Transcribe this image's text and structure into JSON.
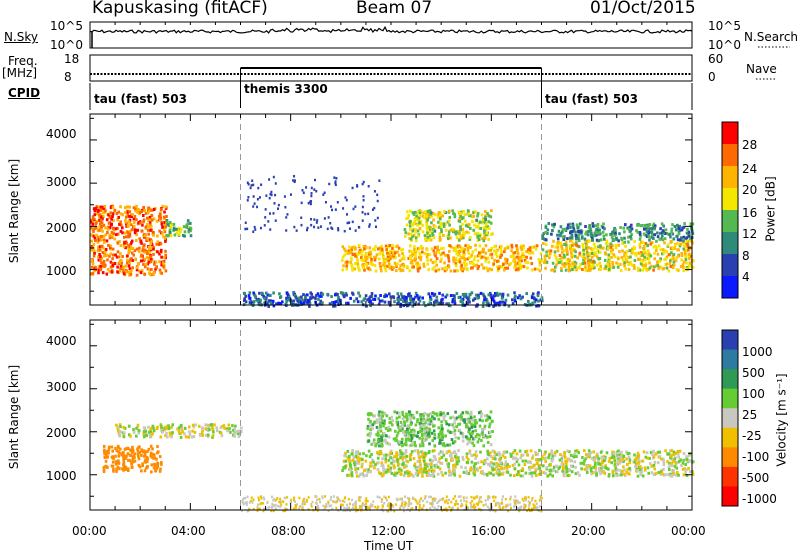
{
  "header": {
    "station": "Kapuskasing (fitACF)",
    "beam": "Beam 07",
    "date": "01/Oct/2015"
  },
  "top_panels": {
    "nsky_label": "N.Sky",
    "nsky_ticks": [
      "10^5",
      "10^0"
    ],
    "nsearch_label": "N.Search",
    "nsearch_ticks": [
      "10^5",
      "10^0"
    ],
    "freq_label": "Freq.",
    "freq_unit": "[MHz]",
    "freq_ticks": [
      "18",
      "8"
    ],
    "nave_label": "Nave",
    "nave_ticks": [
      "60",
      "0"
    ],
    "cpid_label": "CPID",
    "cpid_segments": [
      {
        "label": "tau (fast) 503",
        "start_h": 0,
        "end_h": 6
      },
      {
        "label": "themis 3300",
        "start_h": 6,
        "end_h": 18
      },
      {
        "label": "tau (fast) 503",
        "start_h": 18,
        "end_h": 24
      }
    ]
  },
  "power_panel": {
    "ylabel": "Slant Range [km]",
    "yticks": [
      "4000",
      "3000",
      "2000",
      "1000"
    ],
    "colorbar_label": "Power [dB]",
    "colorbar_ticks": [
      "28",
      "24",
      "20",
      "16",
      "12",
      "8",
      "4"
    ],
    "colors": [
      "#ff0000",
      "#ff6a00",
      "#ffb400",
      "#f5e600",
      "#55b850",
      "#2f8a7a",
      "#2a3fb0",
      "#0a1aff"
    ]
  },
  "velocity_panel": {
    "ylabel": "Slant Range [km]",
    "yticks": [
      "4000",
      "3000",
      "2000",
      "1000"
    ],
    "colorbar_label": "Velocity [m s⁻¹]",
    "colorbar_ticks": [
      "1000",
      "500",
      "100",
      "25",
      "-25",
      "-100",
      "-500",
      "-1000"
    ],
    "colors": [
      "#2a3fb0",
      "#2f7aa0",
      "#2f9a55",
      "#66cc33",
      "#c8c8c0",
      "#f0c000",
      "#ff8a00",
      "#ff3300",
      "#ff0000"
    ]
  },
  "xaxis": {
    "label": "Time UT",
    "ticks": [
      "00:00",
      "04:00",
      "08:00",
      "12:00",
      "16:00",
      "20:00",
      "00:00"
    ]
  },
  "chart_data": {
    "type": "heatmap",
    "title": "Kapuskasing (fitACF) Beam 07 01/Oct/2015",
    "xlabel": "Time UT",
    "ylabel": "Slant Range [km]",
    "xlim_hours": [
      0,
      24
    ],
    "ylim_km": [
      180,
      4600
    ],
    "panels": [
      {
        "name": "Power [dB]",
        "colorbar_range": [
          0,
          30
        ]
      },
      {
        "name": "Velocity [m s-1]",
        "colorbar_range": [
          -1000,
          1000
        ]
      }
    ],
    "power_regions": [
      {
        "t0": 0.0,
        "t1": 3.0,
        "r0": 900,
        "r1": 2500,
        "value_db": 24
      },
      {
        "t0": 3.0,
        "t1": 4.0,
        "r0": 1800,
        "r1": 2200,
        "value_db": 14
      },
      {
        "t0": 6.0,
        "t1": 18.0,
        "r0": 180,
        "r1": 500,
        "value_db": 6
      },
      {
        "t0": 10.0,
        "t1": 18.0,
        "r0": 1000,
        "r1": 1600,
        "value_db": 20
      },
      {
        "t0": 12.5,
        "t1": 16.0,
        "r0": 1700,
        "r1": 2400,
        "value_db": 16
      },
      {
        "t0": 18.0,
        "t1": 24.0,
        "r0": 1000,
        "r1": 1700,
        "value_db": 18
      },
      {
        "t0": 18.0,
        "t1": 24.0,
        "r0": 1700,
        "r1": 2100,
        "value_db": 10
      }
    ],
    "velocity_regions": [
      {
        "t0": 0.5,
        "t1": 2.8,
        "r0": 1100,
        "r1": 1700,
        "value_ms": -300
      },
      {
        "t0": 1.0,
        "t1": 6.0,
        "r0": 1900,
        "r1": 2200,
        "value_ms": 0
      },
      {
        "t0": 10.0,
        "t1": 18.0,
        "r0": 1000,
        "r1": 1600,
        "value_ms": 0
      },
      {
        "t0": 11.0,
        "t1": 16.0,
        "r0": 1700,
        "r1": 2500,
        "value_ms": 60
      },
      {
        "t0": 18.0,
        "t1": 24.0,
        "r0": 1000,
        "r1": 1600,
        "value_ms": 0
      }
    ]
  }
}
